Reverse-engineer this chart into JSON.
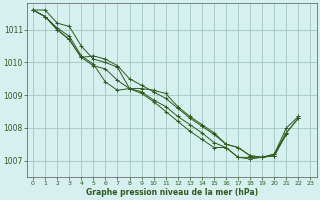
{
  "title": "Graphe pression niveau de la mer (hPa)",
  "xlim": [
    -0.5,
    23.5
  ],
  "ylim": [
    1006.5,
    1011.8
  ],
  "yticks": [
    1007,
    1008,
    1009,
    1010,
    1011
  ],
  "xticks": [
    0,
    1,
    2,
    3,
    4,
    5,
    6,
    7,
    8,
    9,
    10,
    11,
    12,
    13,
    14,
    15,
    16,
    17,
    18,
    19,
    20,
    21,
    22,
    23
  ],
  "background_color": "#d6f0f0",
  "grid_color": "#a0c8c0",
  "line_color": "#2d5a1e",
  "series": [
    [
      1011.6,
      1011.6,
      1011.2,
      1011.1,
      1010.5,
      1010.1,
      1010.0,
      1009.85,
      1009.2,
      1009.2,
      1009.15,
      1009.05,
      1008.65,
      1008.35,
      1008.1,
      1007.85,
      1007.5,
      1007.4,
      1007.15,
      1007.1,
      1007.15,
      1007.85,
      1008.3,
      null
    ],
    [
      1011.6,
      1011.4,
      1011.05,
      1010.8,
      1010.2,
      1009.95,
      1009.4,
      1009.15,
      1009.2,
      1009.1,
      1008.85,
      1008.65,
      1008.35,
      1008.1,
      1007.85,
      1007.55,
      1007.4,
      1007.1,
      1007.1,
      1007.1,
      1007.15,
      1007.8,
      null,
      null
    ],
    [
      1011.6,
      1011.4,
      1011.0,
      1010.7,
      1010.15,
      1009.9,
      1009.8,
      1009.45,
      1009.2,
      1009.05,
      1008.8,
      1008.5,
      1008.2,
      1007.9,
      1007.65,
      1007.4,
      1007.4,
      1007.1,
      1007.05,
      1007.1,
      1007.2,
      1007.85,
      1008.3,
      null
    ],
    [
      1011.6,
      1011.4,
      1011.0,
      1010.7,
      1010.15,
      1010.2,
      1010.1,
      1009.9,
      1009.5,
      1009.3,
      1009.1,
      1008.9,
      1008.6,
      1008.3,
      1008.05,
      1007.8,
      1007.5,
      1007.4,
      1007.15,
      1007.1,
      1007.2,
      1008.0,
      1008.35,
      null
    ]
  ]
}
